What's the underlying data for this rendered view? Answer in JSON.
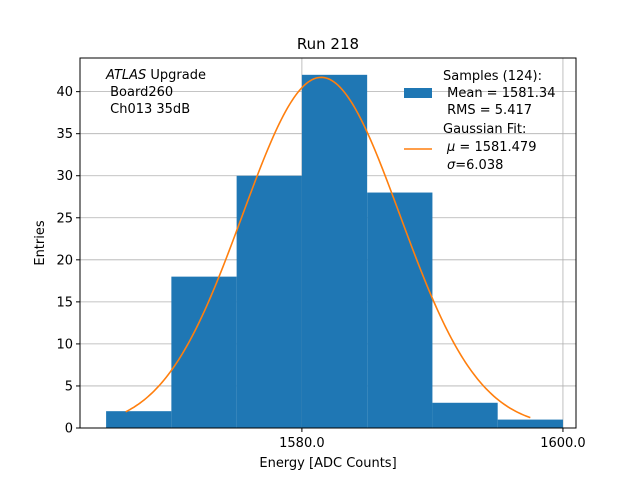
{
  "chart_data": {
    "type": "bar",
    "title": "Run 218",
    "xlabel": "Energy [ADC Counts]",
    "ylabel": "Entries",
    "xlim": [
      1563,
      1601
    ],
    "ylim": [
      0,
      44
    ],
    "grid": true,
    "x_ticks": [
      {
        "value": 1580,
        "label": "1580.0"
      },
      {
        "value": 1600,
        "label": "1600.0"
      }
    ],
    "y_ticks": [
      0,
      5,
      10,
      15,
      20,
      25,
      30,
      35,
      40
    ],
    "bar_color": "#1f77b4",
    "fit_color": "#ff7f0e",
    "bins": [
      {
        "x0": 1565,
        "x1": 1570,
        "count": 2
      },
      {
        "x0": 1570,
        "x1": 1575,
        "count": 18
      },
      {
        "x0": 1575,
        "x1": 1580,
        "count": 30
      },
      {
        "x0": 1580,
        "x1": 1585,
        "count": 42
      },
      {
        "x0": 1585,
        "x1": 1590,
        "count": 28
      },
      {
        "x0": 1590,
        "x1": 1595,
        "count": 3
      },
      {
        "x0": 1595,
        "x1": 1600,
        "count": 1
      }
    ],
    "fit": {
      "mu": 1581.479,
      "sigma": 6.038,
      "amplitude": 41.7,
      "x_range": [
        1566.5,
        1597.5
      ]
    },
    "annotation": {
      "prefix": "ATLAS",
      "suffix": " Upgrade",
      "line2": " Board260",
      "line3": " Ch013 35dB"
    },
    "legend": {
      "position": "top-right",
      "samples": {
        "line1": "Samples (124):",
        "line2": " Mean = 1581.34",
        "line3": " RMS = 5.417"
      },
      "fit": {
        "line1": "Gaussian Fit:",
        "mu_label": "μ",
        "mu_value": " = 1581.479",
        "sigma_label": "σ",
        "sigma_value": "=6.038"
      }
    }
  }
}
